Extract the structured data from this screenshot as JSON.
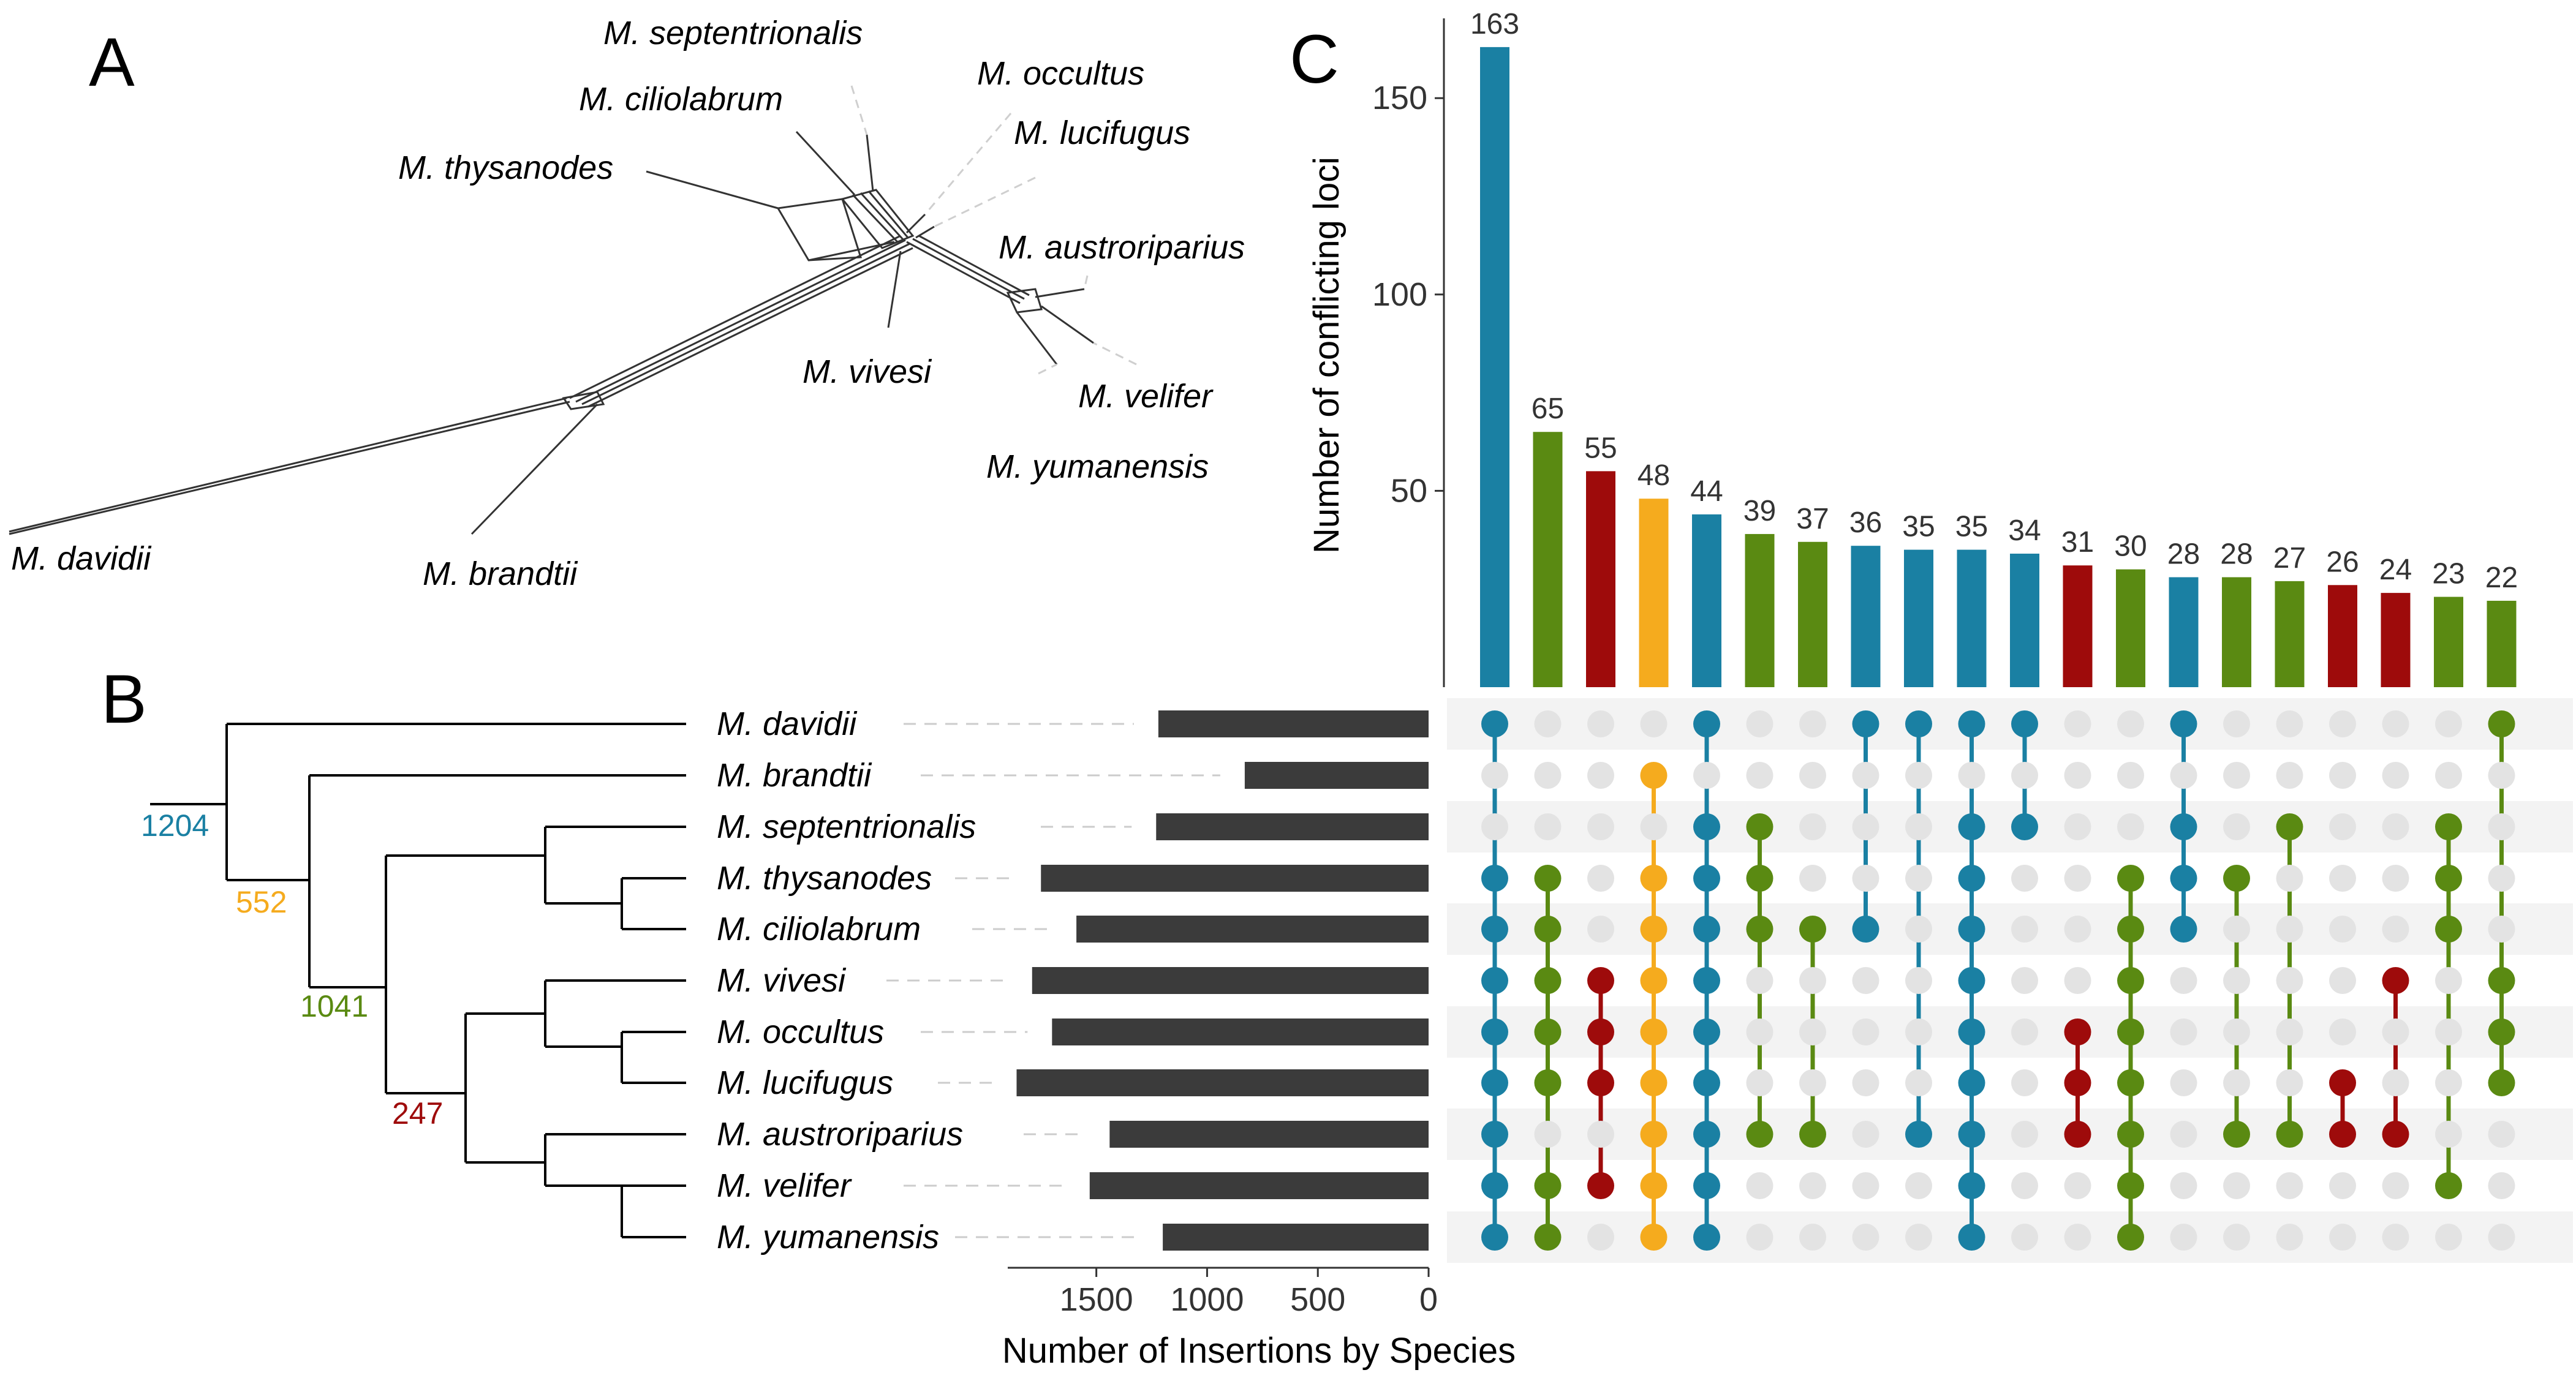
{
  "panels": {
    "a": "A",
    "b": "B",
    "c": "C"
  },
  "network_labels": [
    "M. septentrionalis",
    "M. occultus",
    "M. ciliolabrum",
    "M. lucifugus",
    "M. thysanodes",
    "M. austroriparius",
    "M. vivesi",
    "M. velifer",
    "M. yumanensis",
    "M. davidii",
    "M. brandtii"
  ],
  "colors": {
    "blue": "#1a80a3",
    "green": "#5a8a12",
    "red": "#9e0b0b",
    "gold": "#f5ab1e",
    "bar_dark": "#3b3b3b",
    "empty_dot": "#e3e3e3",
    "row_band": "#f3f3f3"
  },
  "tree_nodes": [
    {
      "label": "1204",
      "color": "#1a80a3"
    },
    {
      "label": "552",
      "color": "#f5ab1e"
    },
    {
      "label": "1041",
      "color": "#5a8a12"
    },
    {
      "label": "247",
      "color": "#9e0b0b"
    }
  ],
  "chart_data": [
    {
      "type": "bar",
      "orientation": "horizontal",
      "title": "",
      "xlabel": "Number of Insertions by Species",
      "xlim": [
        0,
        1900
      ],
      "xticks": [
        "1500",
        "1000",
        "500",
        "0"
      ],
      "tick_values": [
        1500,
        1000,
        500,
        0
      ],
      "categories": [
        "M. davidii",
        "M. brandtii",
        "M. septentrionalis",
        "M. thysanodes",
        "M. ciliolabrum",
        "M. vivesi",
        "M. occultus",
        "M. lucifugus",
        "M. austroriparius",
        "M. velifer",
        "M. yumanensis"
      ],
      "values": [
        1220,
        830,
        1230,
        1750,
        1590,
        1790,
        1700,
        1860,
        1440,
        1530,
        1200
      ]
    },
    {
      "type": "bar",
      "title": "",
      "ylabel": "Number of conflicting loci",
      "ylim": [
        0,
        170
      ],
      "yticks": [
        "50",
        "100",
        "150"
      ],
      "tick_values": [
        50,
        100,
        150
      ],
      "values": [
        163,
        65,
        55,
        48,
        44,
        39,
        37,
        36,
        35,
        35,
        34,
        31,
        30,
        28,
        28,
        27,
        26,
        24,
        23,
        22
      ],
      "value_labels": [
        "163",
        "65",
        "55",
        "48",
        "44",
        "39",
        "37",
        "36",
        "35",
        "35",
        "34",
        "31",
        "30",
        "28",
        "28",
        "27",
        "26",
        "24",
        "23",
        "22"
      ],
      "colors": [
        "blue",
        "green",
        "red",
        "gold",
        "blue",
        "green",
        "green",
        "blue",
        "blue",
        "blue",
        "blue",
        "red",
        "green",
        "blue",
        "green",
        "green",
        "red",
        "red",
        "green",
        "green"
      ],
      "intersections": [
        [
          0,
          3,
          4,
          5,
          6,
          7,
          8,
          9,
          10
        ],
        [
          3,
          4,
          5,
          6,
          7,
          9,
          10
        ],
        [
          5,
          6,
          7,
          9
        ],
        [
          1,
          3,
          4,
          5,
          6,
          7,
          8,
          9,
          10
        ],
        [
          0,
          2,
          3,
          4,
          5,
          6,
          7,
          8,
          9,
          10
        ],
        [
          2,
          3,
          4,
          8
        ],
        [
          4,
          8
        ],
        [
          0,
          4
        ],
        [
          0,
          8
        ],
        [
          0,
          2,
          3,
          4,
          5,
          6,
          7,
          8,
          9,
          10
        ],
        [
          0,
          2
        ],
        [
          6,
          7,
          8
        ],
        [
          3,
          4,
          5,
          6,
          7,
          8,
          9,
          10
        ],
        [
          0,
          2,
          3,
          4
        ],
        [
          3,
          8
        ],
        [
          2,
          8
        ],
        [
          7,
          8
        ],
        [
          5,
          8
        ],
        [
          2,
          3,
          4,
          9
        ],
        [
          0,
          5,
          6,
          7
        ]
      ]
    }
  ]
}
